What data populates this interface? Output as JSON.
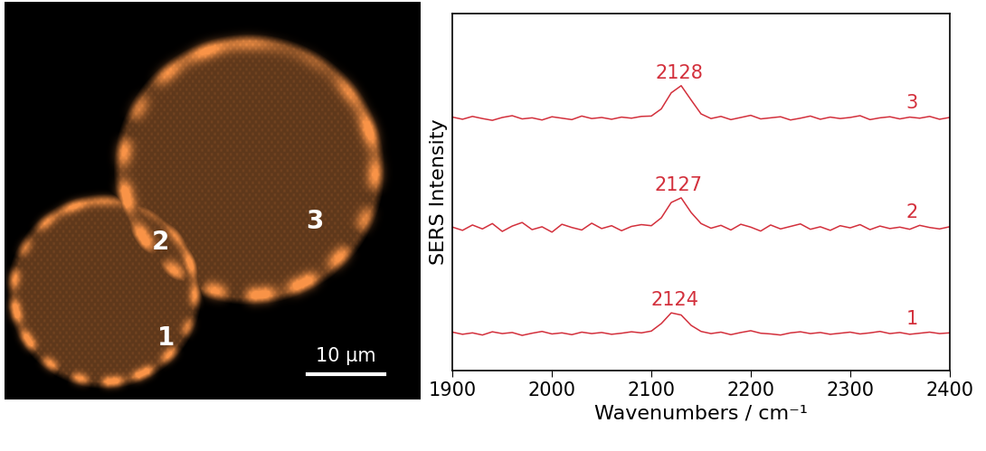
{
  "chart_data": {
    "type": "line",
    "x_label": "Wavenumbers / cm⁻¹",
    "y_label": "SERS Intensity",
    "x": [
      1900,
      1910,
      1920,
      1930,
      1940,
      1950,
      1960,
      1970,
      1980,
      1990,
      2000,
      2010,
      2020,
      2030,
      2040,
      2050,
      2060,
      2070,
      2080,
      2090,
      2100,
      2110,
      2120,
      2130,
      2140,
      2150,
      2160,
      2170,
      2180,
      2190,
      2200,
      2210,
      2220,
      2230,
      2240,
      2250,
      2260,
      2270,
      2280,
      2290,
      2300,
      2310,
      2320,
      2330,
      2340,
      2350,
      2360,
      2370,
      2380,
      2390,
      2400
    ],
    "series": [
      {
        "name": "3",
        "color": "#d3303c",
        "peak": 2128,
        "values": [
          7.1,
          7.04,
          7.12,
          7.06,
          7.01,
          7.09,
          7.14,
          7.05,
          7.08,
          7.02,
          7.11,
          7.07,
          7.03,
          7.13,
          7.06,
          7.09,
          7.04,
          7.1,
          7.07,
          7.12,
          7.13,
          7.33,
          7.78,
          7.98,
          7.58,
          7.19,
          7.06,
          7.12,
          7.03,
          7.09,
          7.15,
          7.05,
          7.08,
          7.11,
          7.02,
          7.07,
          7.13,
          7.04,
          7.1,
          7.06,
          7.09,
          7.14,
          7.03,
          7.08,
          7.11,
          7.05,
          7.1,
          7.07,
          7.12,
          7.04,
          7.09
        ]
      },
      {
        "name": "2",
        "color": "#d3303c",
        "peak": 2127,
        "values": [
          4.02,
          3.93,
          4.08,
          3.97,
          4.12,
          3.9,
          4.05,
          4.15,
          3.95,
          4.03,
          3.88,
          4.1,
          4.01,
          3.94,
          4.13,
          3.98,
          4.06,
          3.92,
          4.04,
          4.09,
          4.06,
          4.28,
          4.71,
          4.84,
          4.43,
          4.12,
          3.99,
          4.07,
          3.94,
          4.1,
          4.02,
          3.91,
          4.08,
          3.97,
          4.04,
          4.11,
          3.96,
          4.03,
          3.93,
          4.06,
          4.0,
          4.09,
          3.95,
          4.05,
          3.98,
          4.02,
          3.96,
          4.07,
          4.01,
          3.97,
          4.03
        ]
      },
      {
        "name": "1",
        "color": "#d3303c",
        "peak": 2124,
        "values": [
          1.08,
          1.02,
          1.06,
          1.0,
          1.09,
          1.04,
          1.07,
          0.99,
          1.05,
          1.1,
          1.03,
          1.06,
          1.01,
          1.08,
          1.04,
          1.07,
          1.02,
          1.05,
          1.09,
          1.06,
          1.11,
          1.32,
          1.62,
          1.56,
          1.27,
          1.1,
          1.04,
          1.08,
          1.01,
          1.07,
          1.12,
          1.05,
          1.03,
          1.0,
          1.06,
          1.09,
          1.04,
          1.07,
          1.02,
          1.05,
          1.08,
          1.03,
          1.06,
          1.1,
          1.04,
          1.07,
          1.02,
          1.05,
          1.08,
          1.04,
          1.06
        ]
      }
    ],
    "xlim": [
      1900,
      2400
    ],
    "xticks": [
      1900,
      2000,
      2100,
      2200,
      2300,
      2400
    ],
    "ylim": [
      0,
      10
    ],
    "yticks": [],
    "tick_labels": "x",
    "grid": false
  },
  "micrograph": {
    "labels": [
      "1",
      "2",
      "3"
    ],
    "scale_bar": "10 µm"
  }
}
